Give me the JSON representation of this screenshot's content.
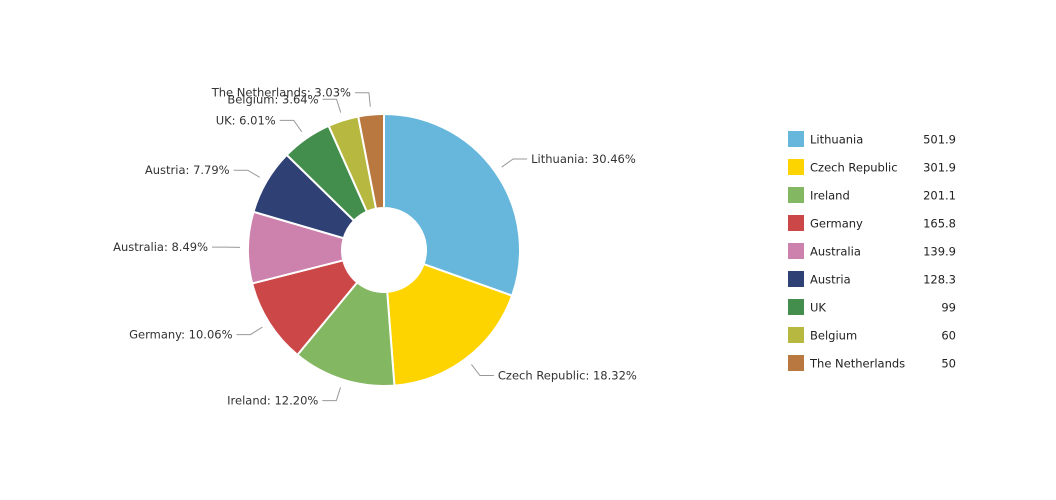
{
  "chart_data": {
    "type": "pie",
    "donut": true,
    "categories": [
      "Lithuania",
      "Czech Republic",
      "Ireland",
      "Germany",
      "Australia",
      "Austria",
      "UK",
      "Belgium",
      "The Netherlands"
    ],
    "values": [
      501.9,
      301.9,
      201.1,
      165.8,
      139.9,
      128.3,
      99,
      60,
      50
    ],
    "value_labels": [
      "501.9",
      "301.9",
      "201.1",
      "165.8",
      "139.9",
      "128.3",
      "99",
      "60",
      "50"
    ],
    "percent_labels": [
      "30.46%",
      "18.32%",
      "12.20%",
      "10.06%",
      "8.49%",
      "7.79%",
      "6.01%",
      "3.64%",
      "3.03%"
    ],
    "colors": [
      "#67b7dc",
      "#fdd400",
      "#84b761",
      "#cc4748",
      "#cd82ad",
      "#2f4074",
      "#448e4d",
      "#b7b83f",
      "#b9783f"
    ],
    "legend_position": "right"
  }
}
